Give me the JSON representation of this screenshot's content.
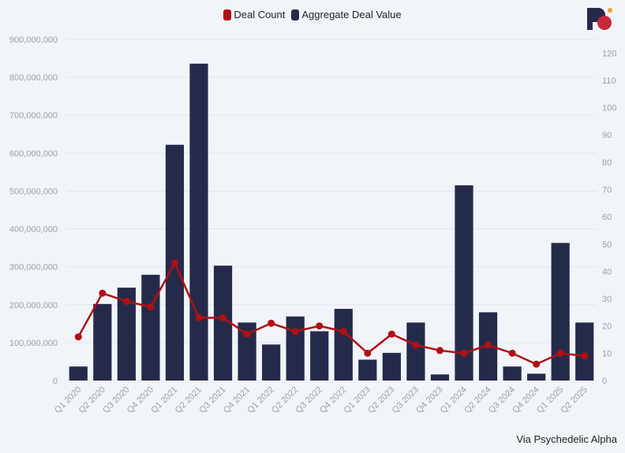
{
  "chart_data": {
    "type": "bar",
    "categories": [
      "Q1 2020",
      "Q2 2020",
      "Q3 2020",
      "Q4 2020",
      "Q1 2021",
      "Q2 2021",
      "Q3 2021",
      "Q4 2021",
      "Q1 2022",
      "Q2 2022",
      "Q3 2022",
      "Q4 2022",
      "Q1 2023",
      "Q2 2023",
      "Q3 2023",
      "Q4 2023",
      "Q1 2024",
      "Q2 2024",
      "Q3 2024",
      "Q4 2024",
      "Q1 2025",
      "Q2 2025"
    ],
    "series": [
      {
        "name": "Aggregate Deal Value",
        "type": "bar",
        "axis": "left",
        "color": "#262a4a",
        "values": [
          37000000,
          202000000,
          245000000,
          279000000,
          622000000,
          836000000,
          303000000,
          153000000,
          95000000,
          169000000,
          130000000,
          189000000,
          55000000,
          73000000,
          153000000,
          16000000,
          515000000,
          180000000,
          37000000,
          18000000,
          363000000,
          153000000
        ]
      },
      {
        "name": "Deal Count",
        "type": "line",
        "axis": "right",
        "color": "#b30f12",
        "values": [
          16,
          32,
          29,
          27,
          43,
          23,
          23,
          17,
          21,
          18,
          20,
          18,
          10,
          17,
          13,
          11,
          10,
          13,
          10,
          6,
          10,
          9
        ]
      }
    ],
    "y_left": {
      "min": 0,
      "max": 900000000,
      "ticks": [
        "0",
        "100,000,000",
        "200,000,000",
        "300,000,000",
        "400,000,000",
        "500,000,000",
        "600,000,000",
        "700,000,000",
        "800,000,000",
        "900,000,000"
      ]
    },
    "y_right": {
      "min": 0,
      "max": 125,
      "ticks": [
        "0",
        "10",
        "20",
        "30",
        "40",
        "50",
        "60",
        "70",
        "80",
        "90",
        "100",
        "110",
        "120"
      ]
    },
    "grid": true,
    "legend_position": "top-center",
    "xlabel": "",
    "ylabel": ""
  },
  "legend": [
    {
      "label": "Deal Count",
      "color": "#b30f12"
    },
    {
      "label": "Aggregate Deal Value",
      "color": "#262a4a"
    }
  ],
  "source": "Via Psychedelic Alpha",
  "logo": {
    "icon": "psychedelic-alpha-logo",
    "colors": [
      "#262a4a",
      "#c8283c",
      "#f0a030"
    ]
  }
}
